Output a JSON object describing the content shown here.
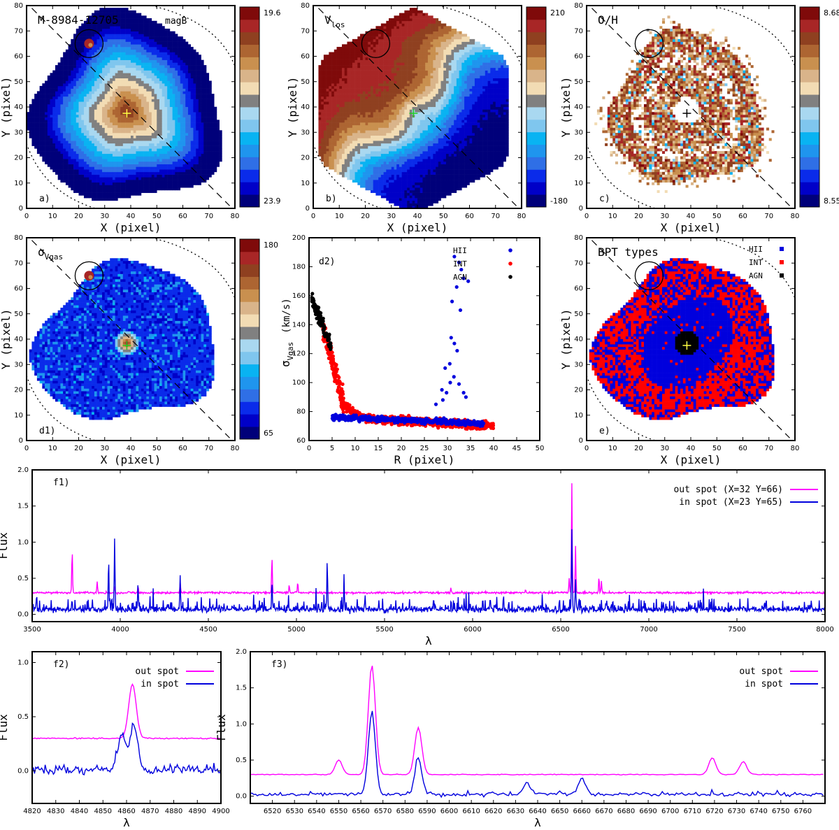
{
  "figure_colors": {
    "magenta": "#ff00ff",
    "blue": "#0000dd",
    "red": "#ff0000",
    "black": "#000000",
    "green": "#22cc22",
    "yellow": "#ffff44"
  },
  "colormap": [
    "#00007a",
    "#0000c8",
    "#0a2bea",
    "#2f6fe6",
    "#1f95ee",
    "#09b3f2",
    "#7fc6ee",
    "#a9d8f0",
    "#808080",
    "#f2dcb4",
    "#d9b48a",
    "#c9904f",
    "#ad6532",
    "#8f4020",
    "#a82626",
    "#7f0a0a"
  ],
  "chart_data": [
    {
      "id": "a",
      "type": "heatmap",
      "panel_label": "a)",
      "title": "M-8984-12705",
      "map_name": "magB",
      "xlabel": "X  (pixel)",
      "ylabel": "Y  (pixel)",
      "xlim": [
        0,
        80
      ],
      "ylim": [
        0,
        80
      ],
      "xticks": [
        0,
        10,
        20,
        30,
        40,
        50,
        60,
        70,
        80
      ],
      "yticks": [
        0,
        10,
        20,
        30,
        40,
        50,
        60,
        70,
        80
      ],
      "colorbar": {
        "top": "19.6",
        "bottom": "23.9"
      },
      "map_pattern": "radial",
      "center": [
        38.5,
        37.5
      ],
      "spot": {
        "x": 24,
        "y": 65
      }
    },
    {
      "id": "b",
      "type": "heatmap",
      "panel_label": "b)",
      "title": "V",
      "title_sub": "los",
      "xlabel": "X  (pixel)",
      "ylabel": "Y  (pixel)",
      "xlim": [
        0,
        80
      ],
      "ylim": [
        0,
        80
      ],
      "xticks": [
        0,
        10,
        20,
        30,
        40,
        50,
        60,
        70,
        80
      ],
      "yticks": [
        0,
        10,
        20,
        30,
        40,
        50,
        60,
        70,
        80
      ],
      "colorbar": {
        "top": "210",
        "bottom": "-180"
      },
      "map_pattern": "velocity",
      "center": [
        38.5,
        37.5
      ],
      "spot": {
        "x": 24,
        "y": 65
      }
    },
    {
      "id": "c",
      "type": "heatmap",
      "panel_label": "c)",
      "title": "O/H",
      "xlabel": "X  (pixel)",
      "ylabel": "Y  (pixel)",
      "xlim": [
        0,
        80
      ],
      "ylim": [
        0,
        80
      ],
      "xticks": [
        0,
        10,
        20,
        30,
        40,
        50,
        60,
        70,
        80
      ],
      "yticks": [
        0,
        10,
        20,
        30,
        40,
        50,
        60,
        70,
        80
      ],
      "colorbar": {
        "top": "8.68",
        "bottom": "8.55"
      },
      "map_pattern": "ring",
      "center": [
        38.5,
        37.5
      ],
      "spot": {
        "x": 24,
        "y": 65
      }
    },
    {
      "id": "d1",
      "type": "heatmap",
      "panel_label": "d1)",
      "title": "σ",
      "title_sub": "Vgas",
      "xlabel": "X  (pixel)",
      "ylabel": "Y  (pixel)",
      "xlim": [
        0,
        80
      ],
      "ylim": [
        0,
        80
      ],
      "xticks": [
        0,
        10,
        20,
        30,
        40,
        50,
        60,
        70,
        80
      ],
      "yticks": [
        0,
        10,
        20,
        30,
        40,
        50,
        60,
        70,
        80
      ],
      "colorbar": {
        "top": "180",
        "bottom": "65"
      },
      "map_pattern": "sigma",
      "center": [
        38.5,
        37.5
      ],
      "spot": {
        "x": 24,
        "y": 65
      }
    },
    {
      "id": "d2",
      "type": "scatter",
      "panel_label": "d2)",
      "xlabel": "R   (pixel)",
      "ylabel": "σ",
      "ylabel_sub": "Vgas",
      "ylabel_unit": "(km/s)",
      "xlim": [
        0,
        50
      ],
      "ylim": [
        60,
        200
      ],
      "xticks": [
        0,
        5,
        10,
        15,
        20,
        25,
        30,
        35,
        40,
        45,
        50
      ],
      "yticks": [
        60,
        80,
        100,
        120,
        140,
        160,
        180,
        200
      ],
      "legend": [
        "HII",
        "INT",
        "AGN"
      ],
      "series": [
        {
          "name": "AGN",
          "color": "#000000",
          "r_range": [
            0.5,
            5
          ],
          "sigma_range": [
            118,
            168
          ]
        },
        {
          "name": "INT",
          "color": "#ff0000",
          "r_range": [
            3,
            40
          ],
          "sigma_range": [
            68,
            140
          ]
        },
        {
          "name": "HII",
          "color": "#0000dd",
          "r_range": [
            5,
            38
          ],
          "sigma_range": [
            70,
            188
          ]
        }
      ]
    },
    {
      "id": "e",
      "type": "heatmap",
      "panel_label": "e)",
      "title": "BPT types",
      "xlabel": "X  (pixel)",
      "ylabel": "Y  (pixel)",
      "xlim": [
        0,
        80
      ],
      "ylim": [
        0,
        80
      ],
      "xticks": [
        0,
        10,
        20,
        30,
        40,
        50,
        60,
        70,
        80
      ],
      "yticks": [
        0,
        10,
        20,
        30,
        40,
        50,
        60,
        70,
        80
      ],
      "legend": [
        "HII",
        "INT",
        "AGN"
      ],
      "map_pattern": "bpt",
      "center": [
        38.5,
        37.5
      ],
      "spot": {
        "x": 24,
        "y": 65
      }
    },
    {
      "id": "f1",
      "type": "line",
      "panel_label": "f1)",
      "xlabel": "λ",
      "ylabel": "Flux",
      "xlim": [
        3500,
        8000
      ],
      "ylim": [
        -0.1,
        2.0
      ],
      "xticks": [
        3500,
        4000,
        4500,
        5000,
        5500,
        6000,
        6500,
        7000,
        7500,
        8000
      ],
      "yticks": [
        0.0,
        0.5,
        1.0,
        1.5,
        2.0
      ],
      "series": [
        {
          "name": "out spot (X=32 Y=66)",
          "color": "#ff00ff",
          "baseline": 0.3,
          "lines": [
            [
              3727,
              0.88
            ],
            [
              3869,
              0.45
            ],
            [
              3968,
              0.4
            ],
            [
              4101,
              0.4
            ],
            [
              4340,
              0.45
            ],
            [
              4861,
              0.8
            ],
            [
              4959,
              0.42
            ],
            [
              5007,
              0.45
            ],
            [
              5876,
              0.36
            ],
            [
              6300,
              0.35
            ],
            [
              6548,
              0.5
            ],
            [
              6563,
              1.82
            ],
            [
              6584,
              0.95
            ],
            [
              6717,
              0.52
            ],
            [
              6731,
              0.48
            ]
          ]
        },
        {
          "name": "in spot (X=23 Y=65)",
          "color": "#0000dd",
          "baseline": 0.05,
          "lines": [
            [
              3934,
              0.76
            ],
            [
              3968,
              1.04
            ],
            [
              4101,
              0.42
            ],
            [
              4340,
              0.52
            ],
            [
              4861,
              0.43
            ],
            [
              5175,
              0.62
            ],
            [
              5270,
              0.4
            ],
            [
              6563,
              1.16
            ],
            [
              6584,
              0.5
            ]
          ]
        }
      ]
    },
    {
      "id": "f2",
      "type": "line",
      "panel_label": "f2)",
      "xlabel": "λ",
      "ylabel": "Flux",
      "xlim": [
        4820,
        4900
      ],
      "ylim": [
        -0.3,
        1.1
      ],
      "xticks": [
        4820,
        4830,
        4840,
        4850,
        4860,
        4870,
        4880,
        4890,
        4900
      ],
      "yticks": [
        0.0,
        0.5,
        1.0
      ],
      "series": [
        {
          "name": "out spot",
          "color": "#ff00ff",
          "baseline": 0.3,
          "lines": [
            [
              4862.5,
              0.8
            ]
          ]
        },
        {
          "name": "in spot",
          "color": "#0000dd",
          "baseline": 0.0,
          "lines": [
            [
              4858,
              0.33
            ],
            [
              4863,
              0.43
            ]
          ]
        }
      ]
    },
    {
      "id": "f3",
      "type": "line",
      "panel_label": "f3)",
      "xlabel": "λ",
      "ylabel": "Flux",
      "xlim": [
        6510,
        6770
      ],
      "ylim": [
        -0.1,
        2.0
      ],
      "xticks": [
        6520,
        6530,
        6540,
        6550,
        6560,
        6570,
        6580,
        6590,
        6600,
        6610,
        6620,
        6630,
        6640,
        6650,
        6660,
        6670,
        6680,
        6690,
        6700,
        6710,
        6720,
        6730,
        6740,
        6750,
        6760
      ],
      "yticks": [
        0.0,
        0.5,
        1.0,
        1.5,
        2.0
      ],
      "series": [
        {
          "name": "out spot",
          "color": "#ff00ff",
          "baseline": 0.3,
          "lines": [
            [
              6550,
              0.5
            ],
            [
              6565,
              1.82
            ],
            [
              6586,
              0.95
            ],
            [
              6719,
              0.53
            ],
            [
              6733,
              0.48
            ]
          ]
        },
        {
          "name": "in spot",
          "color": "#0000dd",
          "baseline": 0.02,
          "lines": [
            [
              6565,
              1.16
            ],
            [
              6586,
              0.5
            ],
            [
              6635,
              0.18
            ],
            [
              6660,
              0.25
            ]
          ]
        }
      ]
    }
  ]
}
